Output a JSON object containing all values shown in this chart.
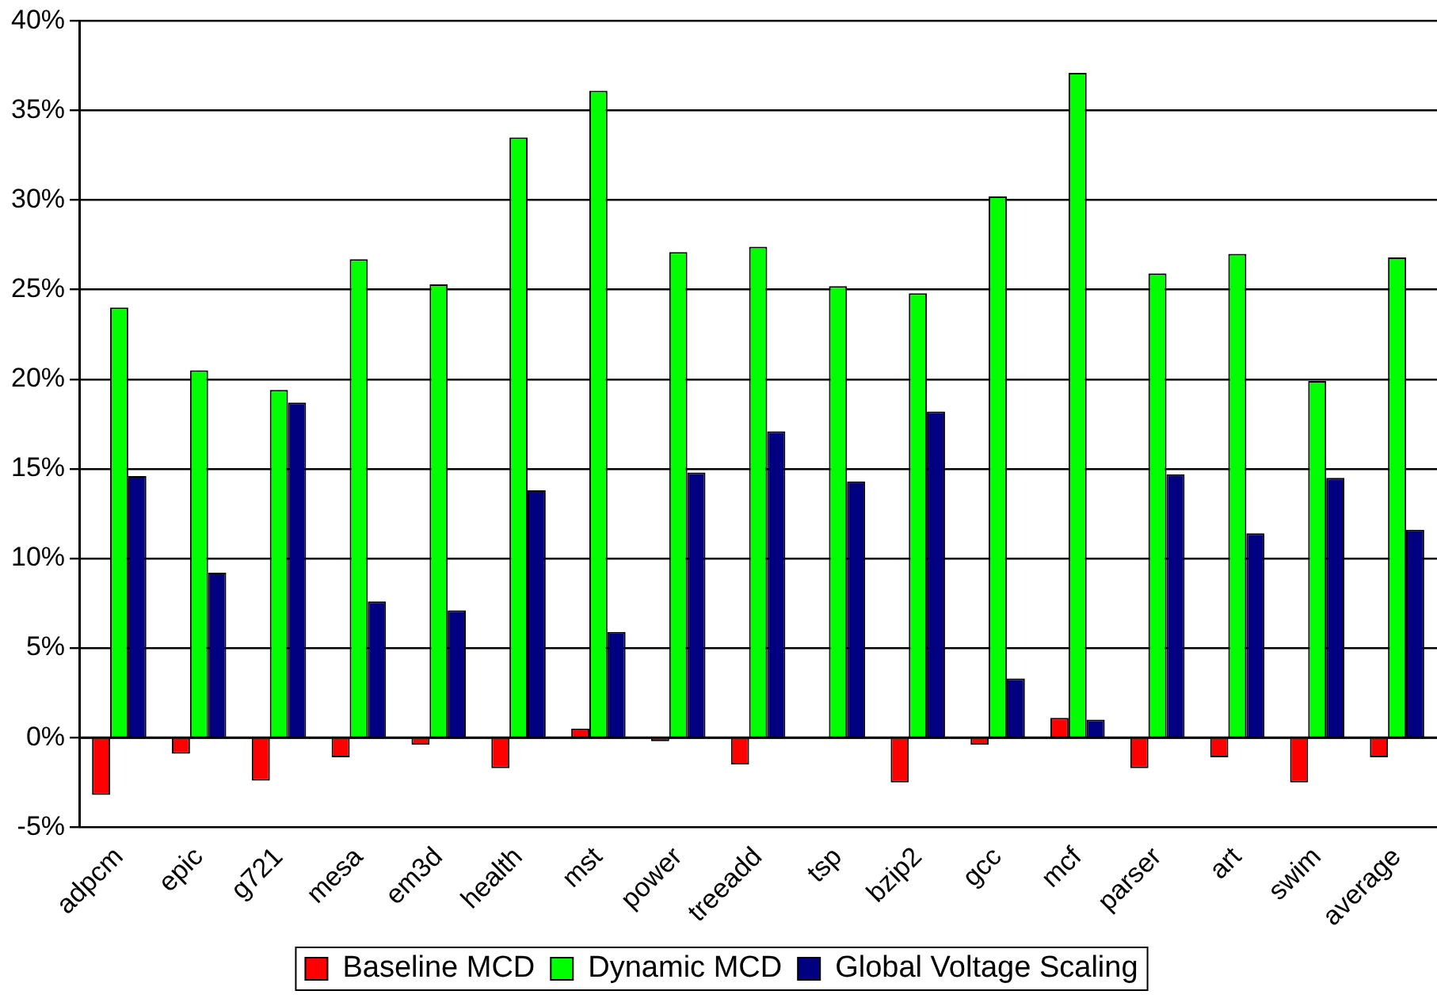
{
  "chart_data": {
    "type": "bar",
    "categories": [
      "adpcm",
      "epic",
      "g721",
      "mesa",
      "em3d",
      "health",
      "mst",
      "power",
      "treeadd",
      "tsp",
      "bzip2",
      "gcc",
      "mcf",
      "parser",
      "art",
      "swim",
      "average"
    ],
    "series": [
      {
        "name": "Baseline MCD",
        "color": "#ff0000",
        "values": [
          -3.2,
          -0.9,
          -2.4,
          -1.1,
          -0.4,
          -1.7,
          0.5,
          -0.2,
          -1.5,
          0,
          -2.5,
          -0.4,
          1.1,
          -1.7,
          -1.1,
          -2.5,
          -1.1
        ]
      },
      {
        "name": "Dynamic MCD",
        "color": "#00ff00",
        "values": [
          24.0,
          20.5,
          19.4,
          26.7,
          25.3,
          33.5,
          36.1,
          27.1,
          27.4,
          25.2,
          24.8,
          30.2,
          37.1,
          25.9,
          27.0,
          19.9,
          26.8
        ]
      },
      {
        "name": "Global Voltage Scaling",
        "color": "#000080",
        "values": [
          14.6,
          9.2,
          18.7,
          7.6,
          7.1,
          13.8,
          5.9,
          14.8,
          17.1,
          14.3,
          18.2,
          3.3,
          1.0,
          14.7,
          11.4,
          14.5,
          11.6
        ]
      }
    ],
    "ylim": [
      -5,
      40
    ],
    "yticks": [
      {
        "value": -5,
        "label": "-5%"
      },
      {
        "value": 0,
        "label": "0%"
      },
      {
        "value": 5,
        "label": "5%"
      },
      {
        "value": 10,
        "label": "10%"
      },
      {
        "value": 15,
        "label": "15%"
      },
      {
        "value": 20,
        "label": "20%"
      },
      {
        "value": 25,
        "label": "25%"
      },
      {
        "value": 30,
        "label": "30%"
      },
      {
        "value": 35,
        "label": "35%"
      },
      {
        "value": 40,
        "label": "40%"
      }
    ],
    "grid": "y",
    "legend": "bottom"
  }
}
